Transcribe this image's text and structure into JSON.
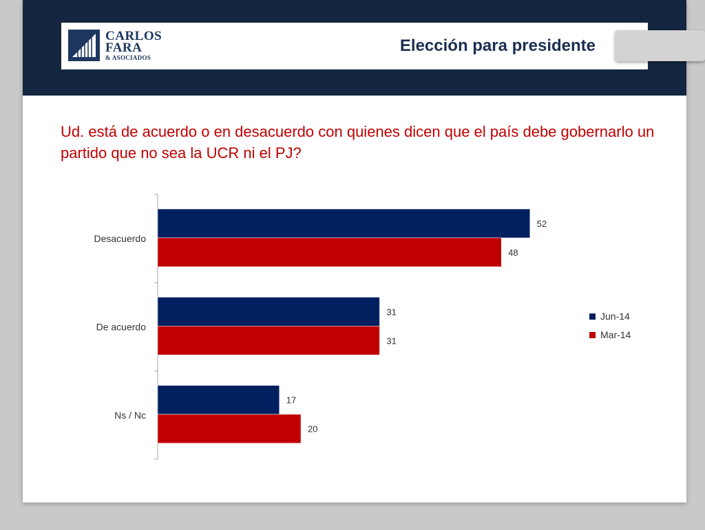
{
  "header": {
    "logo_line1": "CARLOS",
    "logo_line2": "FARA",
    "logo_line3": "& ASOCIADOS",
    "title": "Elección para presidente"
  },
  "question": "Ud. está de acuerdo o en desacuerdo con quienes dicen que el país debe gobernarlo un partido que no sea la UCR ni el PJ?",
  "colors": {
    "header_band": "#14253f",
    "question_text": "#c00000",
    "series_jun": "#002060",
    "series_mar": "#c00000"
  },
  "chart_data": {
    "type": "bar",
    "orientation": "horizontal",
    "categories": [
      "Desacuerdo",
      "De acuerdo",
      "Ns / Nc"
    ],
    "series": [
      {
        "name": "Jun-14",
        "values": [
          52,
          31,
          17
        ],
        "color": "#002060"
      },
      {
        "name": "Mar-14",
        "values": [
          48,
          31,
          20
        ],
        "color": "#c00000"
      }
    ],
    "title": "",
    "xlabel": "",
    "ylabel": "",
    "xlim": [
      0,
      60
    ],
    "grid": false,
    "legend": "right",
    "data_labels": true
  }
}
